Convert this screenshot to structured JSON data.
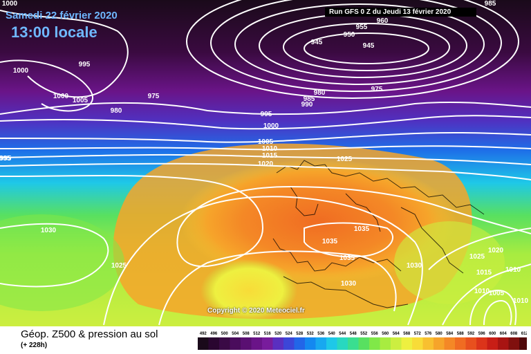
{
  "header": {
    "date": "Samedi 22 février 2020",
    "time": "13:00 locale",
    "run": "Run GFS 0 Z du Jeudi 13 février 2020"
  },
  "copyright": "Copyright © 2020 Meteociel.fr",
  "footer": {
    "title": "Géop. Z500 & pression au sol",
    "subtitle": "(+ 228h)"
  },
  "scale": {
    "labels": [
      "492",
      "496",
      "500",
      "504",
      "508",
      "512",
      "516",
      "520",
      "524",
      "528",
      "532",
      "536",
      "540",
      "544",
      "548",
      "552",
      "556",
      "560",
      "564",
      "568",
      "572",
      "576",
      "580",
      "584",
      "588",
      "592",
      "596",
      "600",
      "604",
      "608",
      "612"
    ],
    "colors": [
      "#1a0a1a",
      "#2a0630",
      "#3a0a45",
      "#4a0c5c",
      "#5a0f72",
      "#6a1488",
      "#781c9c",
      "#5a2fc0",
      "#3c46d8",
      "#2266e8",
      "#1488f0",
      "#18a8f0",
      "#1ec8e8",
      "#28d8c0",
      "#3ade90",
      "#58e060",
      "#80e848",
      "#a8ec40",
      "#ccee40",
      "#eef040",
      "#f8dc38",
      "#f8c030",
      "#f6a42a",
      "#f48826",
      "#f06c22",
      "#e8501e",
      "#dc341a",
      "#c81e16",
      "#a81412",
      "#80100e",
      "#50080a"
    ]
  },
  "isobars": [
    {
      "text": "1000"
    },
    {
      "text": "1000"
    },
    {
      "text": "995"
    },
    {
      "text": "1000"
    },
    {
      "text": "1005"
    },
    {
      "text": "975"
    },
    {
      "text": "980"
    },
    {
      "text": "995"
    },
    {
      "text": "955"
    },
    {
      "text": "960"
    },
    {
      "text": "950"
    },
    {
      "text": "945"
    },
    {
      "text": "945"
    },
    {
      "text": "975"
    },
    {
      "text": "980"
    },
    {
      "text": "985"
    },
    {
      "text": "990"
    },
    {
      "text": "995"
    },
    {
      "text": "1000"
    },
    {
      "text": "1005"
    },
    {
      "text": "1010"
    },
    {
      "text": "1015"
    },
    {
      "text": "1020"
    },
    {
      "text": "1025"
    },
    {
      "text": "995"
    },
    {
      "text": "1030"
    },
    {
      "text": "1025"
    },
    {
      "text": "1035"
    },
    {
      "text": "1035"
    },
    {
      "text": "1035"
    },
    {
      "text": "1030"
    },
    {
      "text": "1030"
    },
    {
      "text": "1020"
    },
    {
      "text": "1025"
    },
    {
      "text": "1015"
    },
    {
      "text": "1010"
    },
    {
      "text": "1010"
    },
    {
      "text": "1005"
    },
    {
      "text": "1010"
    },
    {
      "text": "985"
    }
  ]
}
